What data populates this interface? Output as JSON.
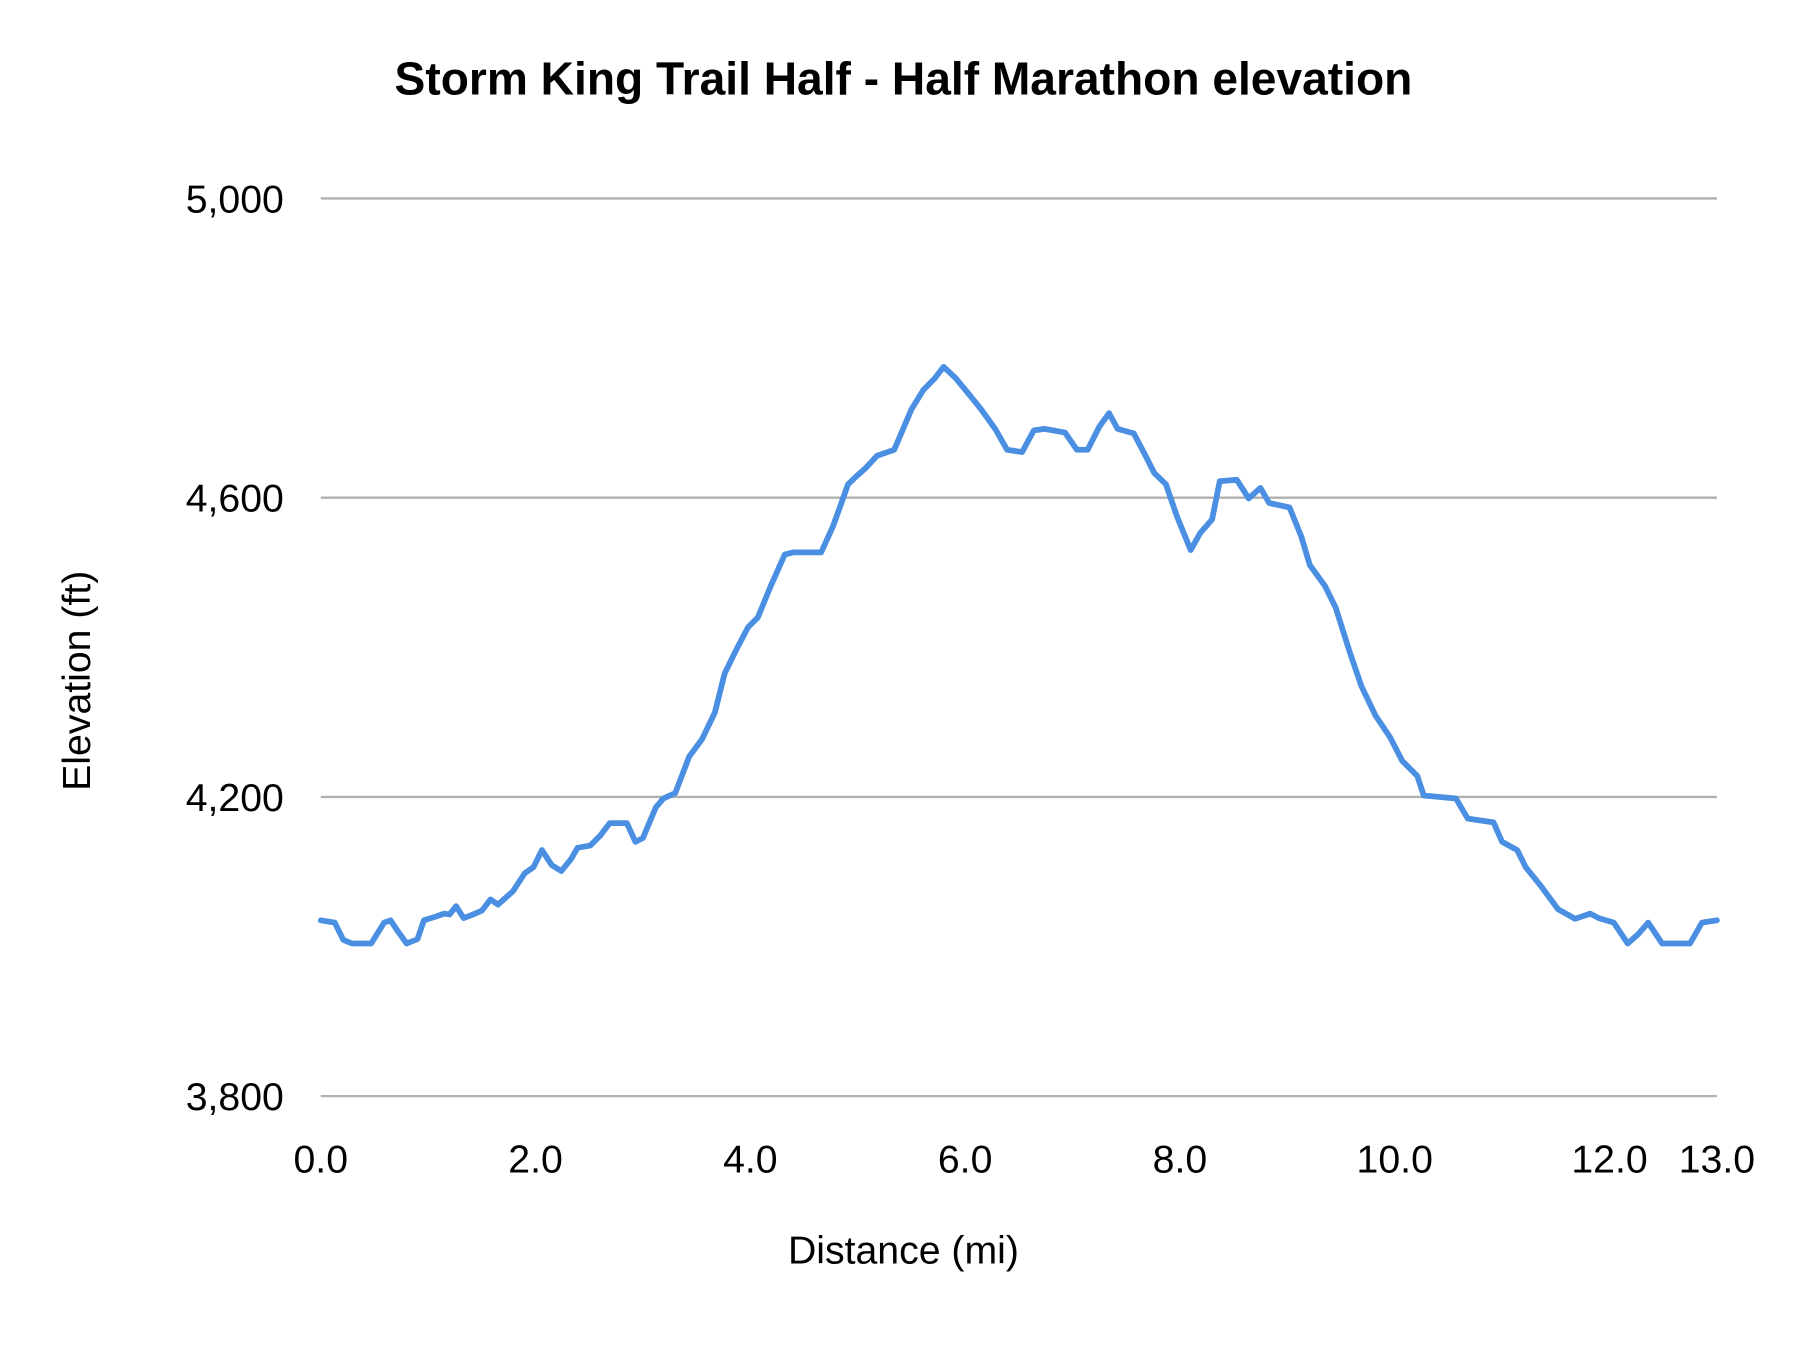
{
  "chart_data": {
    "type": "line",
    "title": "Storm King Trail Half - Half Marathon elevation",
    "xlabel": "Distance (mi)",
    "ylabel": "Elevation (ft)",
    "xlim": [
      0,
      13
    ],
    "ylim": [
      3800,
      5000
    ],
    "x_ticks": [
      0,
      2,
      4,
      6,
      8,
      10,
      12,
      13
    ],
    "x_tick_labels": [
      "0.0",
      "2.0",
      "4.0",
      "6.0",
      "8.0",
      "10.0",
      "12.0",
      "13.0"
    ],
    "y_ticks": [
      3800,
      4200,
      4600,
      5000
    ],
    "y_tick_labels": [
      "3,800",
      "4,200",
      "4,600",
      "5,000"
    ],
    "grid": "horizontal",
    "legend": "none",
    "colors": {
      "line": "#4a8fe2",
      "grid": "#b0b0b0"
    },
    "series": [
      {
        "x": [
          0,
          0.13,
          0.21,
          0.29,
          0.47,
          0.59,
          0.65,
          0.72,
          0.8,
          0.9,
          0.96,
          1.07,
          1.15,
          1.2,
          1.26,
          1.33,
          1.42,
          1.5,
          1.58,
          1.65,
          1.79,
          1.9,
          1.98,
          2.06,
          2.15,
          2.24,
          2.33,
          2.39,
          2.51,
          2.6,
          2.69,
          2.85,
          2.93,
          3.0,
          3.12,
          3.19,
          3.3,
          3.43,
          3.55,
          3.67,
          3.76,
          3.87,
          3.98,
          4.07,
          4.19,
          4.32,
          4.4,
          4.66,
          4.77,
          4.91,
          4.99,
          5.07,
          5.18,
          5.34,
          5.5,
          5.61,
          5.72,
          5.8,
          5.91,
          6.02,
          6.15,
          6.28,
          6.39,
          6.53,
          6.64,
          6.74,
          6.93,
          7.04,
          7.14,
          7.25,
          7.34,
          7.42,
          7.57,
          7.68,
          7.76,
          7.87,
          7.97,
          8.1,
          8.19,
          8.3,
          8.37,
          8.53,
          8.64,
          8.75,
          8.83,
          9.02,
          9.13,
          9.21,
          9.35,
          9.45,
          9.58,
          9.69,
          9.82,
          9.96,
          10.07,
          10.21,
          10.27,
          10.57,
          10.68,
          10.92,
          11.0,
          11.14,
          11.22,
          11.36,
          11.52,
          11.68,
          11.82,
          11.9,
          12.04,
          12.17,
          12.27,
          12.36,
          12.49,
          12.75,
          12.86,
          13.0
        ],
        "y": [
          4035,
          4032,
          4009,
          4004,
          4004,
          4032,
          4035,
          4020,
          4004,
          4010,
          4035,
          4040,
          4044,
          4043,
          4054,
          4038,
          4043,
          4048,
          4063,
          4056,
          4074,
          4098,
          4106,
          4129,
          4109,
          4101,
          4117,
          4132,
          4135,
          4148,
          4165,
          4165,
          4140,
          4145,
          4186,
          4198,
          4205,
          4254,
          4277,
          4313,
          4365,
          4397,
          4427,
          4440,
          4482,
          4524,
          4527,
          4527,
          4562,
          4618,
          4629,
          4639,
          4656,
          4664,
          4718,
          4744,
          4760,
          4775,
          4760,
          4741,
          4718,
          4692,
          4664,
          4661,
          4690,
          4692,
          4687,
          4664,
          4664,
          4695,
          4713,
          4692,
          4686,
          4656,
          4633,
          4618,
          4576,
          4530,
          4553,
          4571,
          4622,
          4624,
          4599,
          4613,
          4593,
          4587,
          4548,
          4510,
          4482,
          4453,
          4394,
          4348,
          4309,
          4279,
          4248,
          4228,
          4202,
          4198,
          4171,
          4166,
          4140,
          4129,
          4106,
          4081,
          4050,
          4037,
          4044,
          4038,
          4032,
          4004,
          4017,
          4032,
          4004,
          4004,
          4032,
          4035
        ]
      }
    ]
  }
}
